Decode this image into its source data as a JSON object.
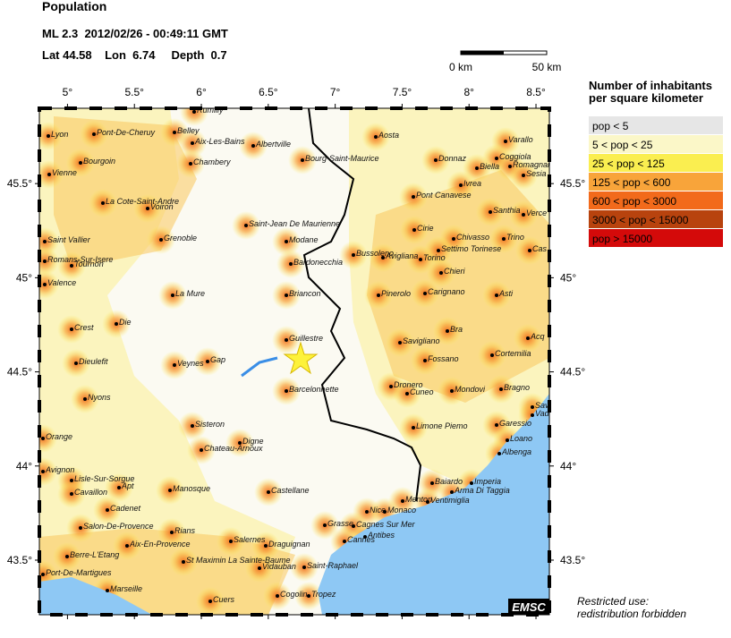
{
  "header": {
    "title": "Population",
    "event_line": "ML 2.3  2012/02/26 - 00:49:11 GMT",
    "location_line": "Lat 44.58    Lon  6.74     Depth  0.7"
  },
  "scale_bar": {
    "start_label": "0 km",
    "end_label": "50 km"
  },
  "map": {
    "lon_range": [
      4.79,
      8.6
    ],
    "lat_range": [
      43.21,
      45.9
    ],
    "lon_ticks": [
      {
        "value": 5,
        "label": "5°"
      },
      {
        "value": 5.5,
        "label": "5.5°"
      },
      {
        "value": 6,
        "label": "6°"
      },
      {
        "value": 6.5,
        "label": "6.5°"
      },
      {
        "value": 7,
        "label": "7°"
      },
      {
        "value": 7.5,
        "label": "7.5°"
      },
      {
        "value": 8,
        "label": "8°"
      },
      {
        "value": 8.5,
        "label": "8.5°"
      }
    ],
    "lat_ticks": [
      {
        "value": 43.5,
        "label": "43.5°"
      },
      {
        "value": 44,
        "label": "44°"
      },
      {
        "value": 44.5,
        "label": "44.5°"
      },
      {
        "value": 45,
        "label": "45°"
      },
      {
        "value": 45.5,
        "label": "45.5°"
      }
    ],
    "cities": [
      "Rumilly",
      "Lyon",
      "Pont-De-Cheruy",
      "Belley",
      "Aix-Les-Bains",
      "Albertville",
      "Aosta",
      "Varallo",
      "Coggiola",
      "Romagnano",
      "Sesia",
      "Bourgoin",
      "Chambery",
      "Bourg-Saint-Maurice",
      "Donnaz",
      "Biella",
      "Ivrea",
      "Vienne",
      "La Cote-Saint-Andre",
      "Voiron",
      "Pont Canavese",
      "Santhia",
      "Verce",
      "Saint-Jean De Maurienne",
      "Grenoble",
      "Saint Vallier",
      "Modane",
      "Cirie",
      "Bussoleno",
      "Chivasso",
      "Trino",
      "Avigliana",
      "Settimo Torinese",
      "Cas",
      "Torino",
      "Romans-Sur-Isere",
      "Tournon",
      "Bardonecchia",
      "Chieri",
      "Valence",
      "La Mure",
      "Briancon",
      "Pinerolo",
      "Carignano",
      "Asti",
      "Crest",
      "Die",
      "Bra",
      "Guillestre",
      "Savigliano",
      "Acq",
      "Cortemilia",
      "Dieulefit",
      "Veynes",
      "Gap",
      "Fossano",
      "Barcelonnette",
      "Dronero",
      "Cuneo",
      "Mondovi",
      "Bragno",
      "Nyons",
      "Savi",
      "Vado",
      "Sisteron",
      "Limone Piemo",
      "Garessio",
      "Orange",
      "Chateau-Arnoux",
      "Digne",
      "Loano",
      "Albenga",
      "Avignon",
      "Lisle-Sur-Sorgue",
      "Apt",
      "Baiardo",
      "Imperia",
      "Cavaillon",
      "Manosque",
      "Castellane",
      "Arma Di Taggia",
      "Menton",
      "Ventimiglia",
      "Cadenet",
      "Nice",
      "Monaco",
      "Salon-De-Provence",
      "Rians",
      "Grasse",
      "Cagnes Sur Mer",
      "Antibes",
      "Cannes",
      "Aix-En-Provence",
      "Salernes",
      "Draguignan",
      "Berre-L'Etang",
      "St Maximin La Sainte-Baume",
      "Vidauban",
      "Saint-Raphael",
      "Port-De-Martigues",
      "Marseille",
      "Cuers",
      "Cogolin",
      "Tropez"
    ],
    "credit": "EMSC",
    "notice_lines": [
      "Restricted use:",
      "redistribution forbidden"
    ]
  },
  "legend": {
    "title_lines": [
      "Number of inhabitants",
      "per square kilometer"
    ],
    "items": [
      {
        "label": "pop < 5",
        "color": "#e6e6e6"
      },
      {
        "label": "5 < pop < 25",
        "color": "#fbf7c8"
      },
      {
        "label": "25 < pop < 125",
        "color": "#faee50"
      },
      {
        "label": "125 < pop < 600",
        "color": "#f8a43a"
      },
      {
        "label": "600 < pop < 3000",
        "color": "#f26a1b"
      },
      {
        "label": "3000 < pop < 15000",
        "color": "#b8430e"
      },
      {
        "label": "pop > 15000",
        "color": "#d40a0a"
      }
    ]
  }
}
